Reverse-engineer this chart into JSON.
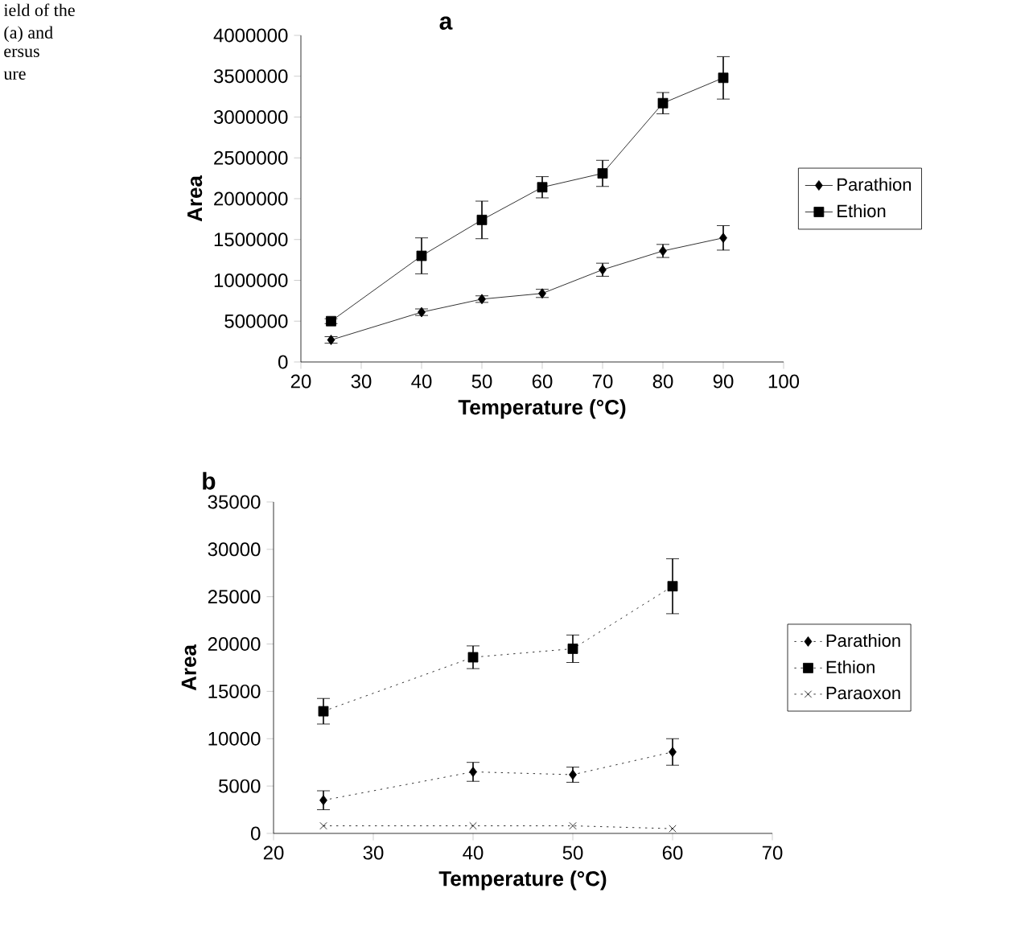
{
  "chart_data": [
    {
      "type": "line",
      "title": "a",
      "xlabel": "Temperature (°C)",
      "ylabel": "Area",
      "annotations": [
        "ield of the",
        "(a) and",
        "ersus",
        "ure"
      ],
      "xlim": [
        20,
        100
      ],
      "xticks": [
        20,
        30,
        40,
        50,
        60,
        70,
        80,
        90,
        100
      ],
      "ylim": [
        0,
        4000000
      ],
      "yticks": [
        0,
        500000,
        1000000,
        1500000,
        2000000,
        2500000,
        3000000,
        3500000,
        4000000
      ],
      "legend": "right",
      "line_style": "solid",
      "grid": false,
      "series": [
        {
          "name": "Parathion",
          "color": "#000000",
          "marker": "diamond",
          "x": [
            25,
            40,
            50,
            60,
            70,
            80,
            90
          ],
          "values": [
            270000,
            610000,
            770000,
            840000,
            1130000,
            1360000,
            1520000
          ],
          "errors": [
            40000,
            40000,
            40000,
            50000,
            80000,
            80000,
            150000
          ]
        },
        {
          "name": "Ethion",
          "color": "#000000",
          "marker": "square",
          "x": [
            25,
            40,
            50,
            60,
            70,
            80,
            90
          ],
          "values": [
            500000,
            1300000,
            1740000,
            2140000,
            2310000,
            3170000,
            3480000
          ],
          "errors": [
            30000,
            220000,
            230000,
            130000,
            160000,
            130000,
            260000
          ]
        }
      ]
    },
    {
      "type": "line",
      "title": "b",
      "xlabel": "Temperature (°C)",
      "ylabel": "Area",
      "xlim": [
        20,
        70
      ],
      "xticks": [
        20,
        30,
        40,
        50,
        60,
        70
      ],
      "ylim": [
        0,
        35000
      ],
      "yticks": [
        0,
        5000,
        10000,
        15000,
        20000,
        25000,
        30000,
        35000
      ],
      "legend": "right",
      "line_style": "dotted",
      "grid": false,
      "series": [
        {
          "name": "Parathion",
          "color": "#000000",
          "marker": "diamond",
          "x": [
            25,
            40,
            50,
            60
          ],
          "values": [
            3500,
            6500,
            6200,
            8600
          ],
          "errors": [
            1000,
            1000,
            800,
            1400
          ]
        },
        {
          "name": "Ethion",
          "color": "#000000",
          "marker": "square",
          "x": [
            25,
            40,
            50,
            60
          ],
          "values": [
            12900,
            18600,
            19500,
            26100
          ],
          "errors": [
            1350,
            1200,
            1450,
            2900
          ]
        },
        {
          "name": "Paraoxon",
          "color": "#000000",
          "marker": "cross",
          "x": [
            25,
            40,
            50,
            60
          ],
          "values": [
            800,
            800,
            800,
            500
          ]
        }
      ]
    }
  ]
}
